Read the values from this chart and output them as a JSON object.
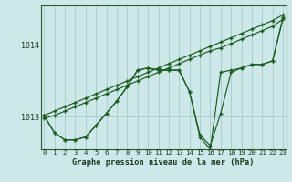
{
  "title": "Graphe pression niveau de la mer (hPa)",
  "bg_color": "#cce8e8",
  "grid_color": "#aacfcf",
  "line_color": "#1a5c1a",
  "x_labels": [
    "0",
    "1",
    "2",
    "3",
    "4",
    "5",
    "6",
    "7",
    "8",
    "9",
    "10",
    "11",
    "12",
    "13",
    "14",
    "15",
    "16",
    "17",
    "18",
    "19",
    "20",
    "21",
    "22",
    "23"
  ],
  "y_ticks": [
    1013,
    1014
  ],
  "ylim": [
    1012.55,
    1014.55
  ],
  "xlim": [
    -0.3,
    23.3
  ],
  "line_straight_top": [
    1013.02,
    1013.08,
    1013.14,
    1013.2,
    1013.26,
    1013.32,
    1013.38,
    1013.44,
    1013.5,
    1013.56,
    1013.62,
    1013.68,
    1013.74,
    1013.8,
    1013.86,
    1013.92,
    1013.98,
    1014.04,
    1014.1,
    1014.16,
    1014.22,
    1014.28,
    1014.34,
    1014.42
  ],
  "line_straight_bot": [
    1012.98,
    1013.02,
    1013.08,
    1013.14,
    1013.2,
    1013.26,
    1013.32,
    1013.38,
    1013.44,
    1013.5,
    1013.56,
    1013.62,
    1013.68,
    1013.74,
    1013.8,
    1013.86,
    1013.92,
    1013.96,
    1014.02,
    1014.08,
    1014.14,
    1014.2,
    1014.26,
    1014.36
  ],
  "line_wavy1": [
    1013.02,
    1012.78,
    1012.68,
    1012.68,
    1012.72,
    1012.88,
    1013.05,
    1013.22,
    1013.42,
    1013.65,
    1013.68,
    1013.65,
    1013.65,
    1013.65,
    1013.35,
    1012.75,
    1012.6,
    1013.05,
    1013.62,
    1013.68,
    1013.73,
    1013.73,
    1013.78,
    1014.38
  ],
  "line_wavy2": [
    1013.02,
    1012.78,
    1012.68,
    1012.68,
    1012.72,
    1012.88,
    1013.05,
    1013.22,
    1013.42,
    1013.65,
    1013.68,
    1013.65,
    1013.65,
    1013.65,
    1013.35,
    1012.72,
    1012.55,
    1013.62,
    1013.65,
    1013.68,
    1013.73,
    1013.73,
    1013.78,
    1014.38
  ]
}
